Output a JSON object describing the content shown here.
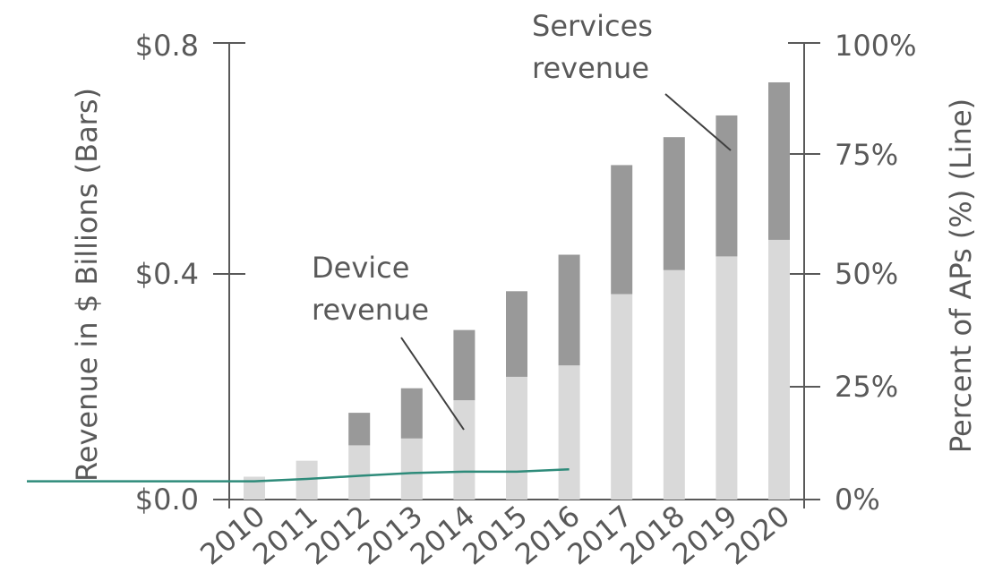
{
  "chart_data": {
    "type": "bar",
    "stacked": true,
    "categories": [
      "2010",
      "2011",
      "2012",
      "2013",
      "2014",
      "2015",
      "2016",
      "2017",
      "2018",
      "2019",
      "2020"
    ],
    "series": [
      {
        "name": "Device revenue",
        "values": [
          0.04,
          0.068,
          0.095,
          0.107,
          0.174,
          0.215,
          0.235,
          0.36,
          0.402,
          0.426,
          0.455
        ],
        "color": "#d9d9d9"
      },
      {
        "name": "Services revenue",
        "values": [
          0,
          0,
          0.057,
          0.088,
          0.123,
          0.15,
          0.194,
          0.226,
          0.233,
          0.247,
          0.276
        ],
        "color": "#999999"
      }
    ],
    "line": {
      "axis": "right",
      "color": "#2e8b7a",
      "x": [
        "2010",
        "2011",
        "2012",
        "2013",
        "2014",
        "2015",
        "2016"
      ],
      "values": [
        4,
        4.5,
        5.2,
        5.8,
        6.1,
        6.1,
        6.6
      ]
    },
    "left_axis": {
      "title": "Revenue in $ Billions (Bars)",
      "ticks": [
        "$0.0",
        "$0.4",
        "$0.8"
      ],
      "ylim": [
        0,
        0.8
      ]
    },
    "right_axis": {
      "title": "Percent of APs (%) (Line)",
      "ticks": [
        "0%",
        "25%",
        "50%",
        "75%",
        "100%"
      ],
      "ylim": [
        0,
        100
      ]
    },
    "annotations": {
      "device": [
        "Device",
        "revenue"
      ],
      "services": [
        "Services",
        "revenue"
      ]
    }
  }
}
